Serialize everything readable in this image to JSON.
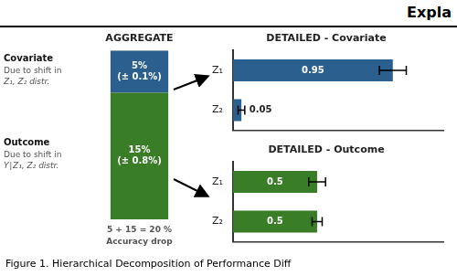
{
  "title": "Expla",
  "annotations": [
    "Figure 1. Hierarchical Decomposition of Performance Diff"
  ],
  "chart_data": [
    {
      "type": "bar",
      "title": "AGGREGATE",
      "stacked": true,
      "categories": [
        null
      ],
      "series": [
        {
          "name": "Outcome",
          "color": "#3a7d27",
          "values": [
            15
          ],
          "value_labels": [
            "15%\n(± 0.8%)"
          ],
          "annotations": [
            "Due to shift in",
            "Y∣Z₁, Z₂ distr."
          ]
        },
        {
          "name": "Covariate",
          "color": "#2b5f8e",
          "values": [
            5
          ],
          "value_labels": [
            "5%\n(± 0.1%)"
          ],
          "annotations": [
            "Due to shift in",
            "Z₁, Z₂ distr."
          ]
        }
      ],
      "ylim": [
        0,
        20
      ],
      "data_labels": true,
      "tick_labels": false,
      "grid": false,
      "annotations": [
        "5 + 15 = 20 %",
        "Accuracy drop"
      ]
    },
    {
      "type": "bar",
      "orientation": "horizontal",
      "title": "DETAILED - Covariate",
      "categories": [
        "Z₁",
        "Z₂"
      ],
      "values": [
        0.95,
        0.05
      ],
      "errors": [
        0.08,
        0.02
      ],
      "color": "#2b5f8e",
      "xlim": [
        0,
        1.25
      ],
      "data_labels": true,
      "tick_labels": "y",
      "grid": false
    },
    {
      "type": "bar",
      "orientation": "horizontal",
      "title": "DETAILED - Outcome",
      "categories": [
        "Z₁",
        "Z₂"
      ],
      "values": [
        0.5,
        0.5
      ],
      "errors": [
        0.05,
        0.03
      ],
      "color": "#3a7d27",
      "xlim": [
        0,
        1.25
      ],
      "data_labels": true,
      "tick_labels": "y",
      "grid": false
    }
  ]
}
